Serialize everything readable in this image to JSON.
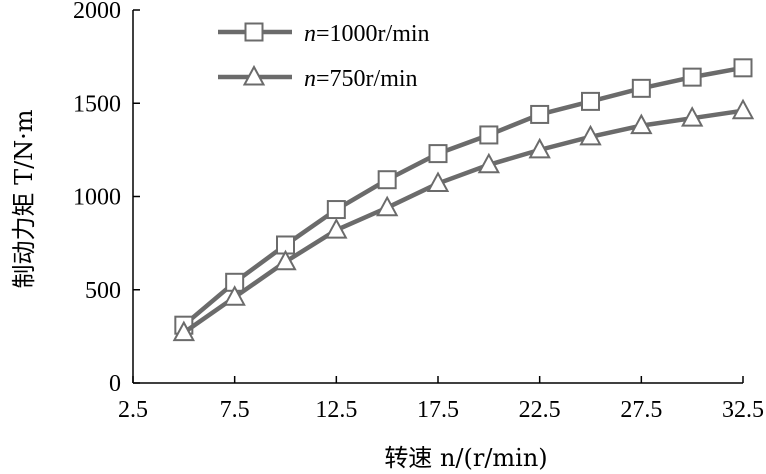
{
  "chart_data": {
    "type": "line",
    "xlabel": "转速 n/(r/min)",
    "ylabel": "制动力矩 T/N·m",
    "xlim": [
      2.5,
      32.5
    ],
    "ylim": [
      0,
      2000
    ],
    "xticks": [
      "2.5",
      "7.5",
      "12.5",
      "17.5",
      "22.5",
      "27.5",
      "32.5"
    ],
    "yticks": [
      "0",
      "500",
      "1000",
      "1500",
      "2000"
    ],
    "grid": false,
    "legend_position": "top-left",
    "x": [
      5,
      7.5,
      10,
      12.5,
      15,
      17.5,
      20,
      22.5,
      25,
      27.5,
      30,
      32.5
    ],
    "series": [
      {
        "name": "n=1000r/min",
        "marker": "square",
        "color": "#6b6b6b",
        "values": [
          310,
          540,
          740,
          930,
          1090,
          1230,
          1330,
          1440,
          1510,
          1580,
          1640,
          1690
        ]
      },
      {
        "name": "n=750r/min",
        "marker": "triangle",
        "color": "#6b6b6b",
        "values": [
          270,
          460,
          650,
          820,
          940,
          1070,
          1170,
          1250,
          1320,
          1380,
          1420,
          1460
        ]
      }
    ]
  }
}
